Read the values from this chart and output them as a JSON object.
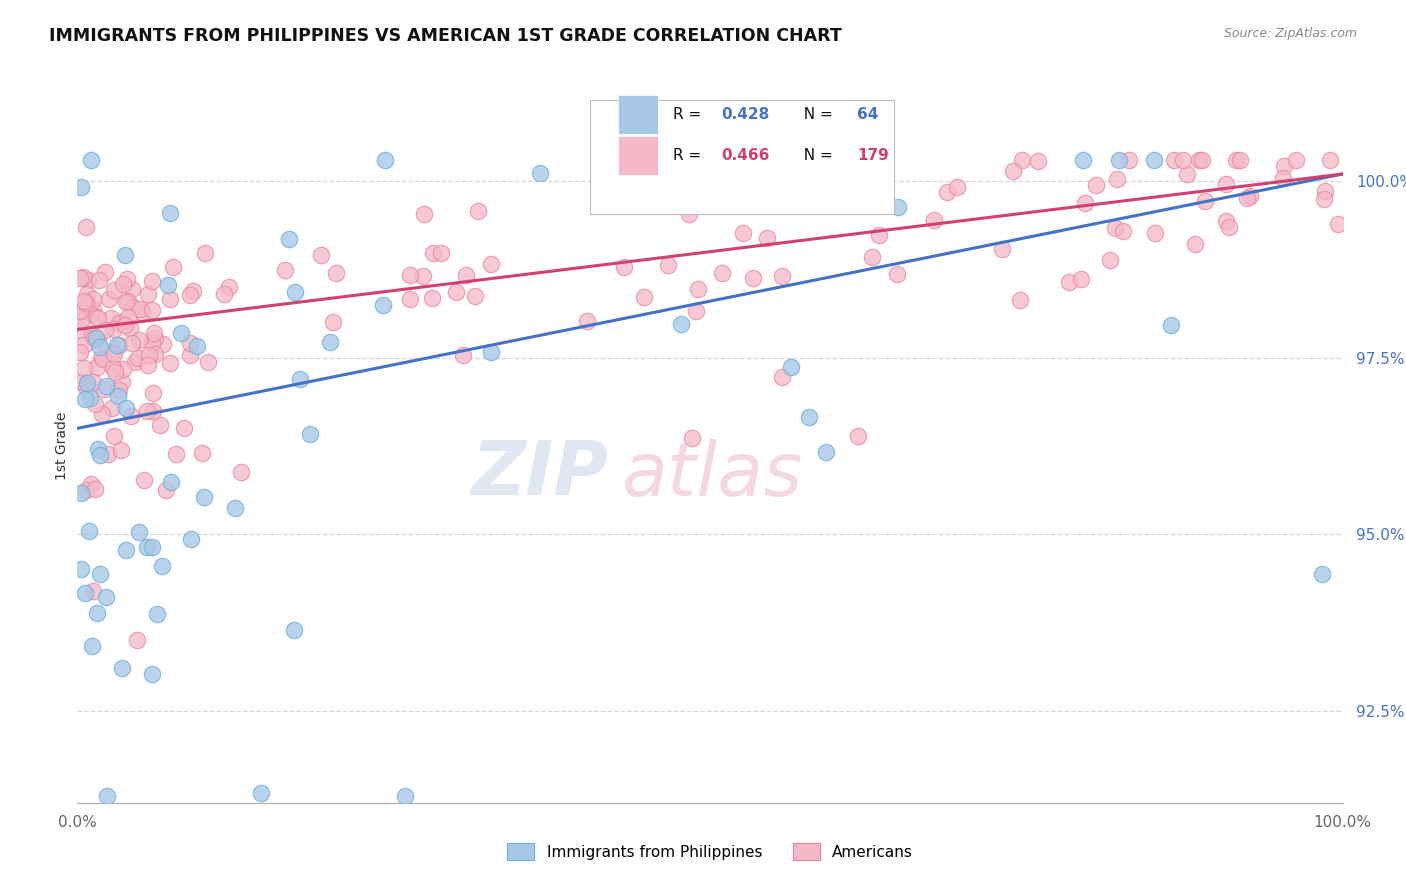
{
  "title": "IMMIGRANTS FROM PHILIPPINES VS AMERICAN 1ST GRADE CORRELATION CHART",
  "source_text": "Source: ZipAtlas.com",
  "ylabel": "1st Grade",
  "xlim": [
    0.0,
    100.0
  ],
  "ylim": [
    91.2,
    101.3
  ],
  "yticks": [
    92.5,
    95.0,
    97.5,
    100.0
  ],
  "ytick_labels": [
    "92.5%",
    "95.0%",
    "97.5%",
    "100.0%"
  ],
  "legend_label1": "Immigrants from Philippines",
  "legend_label2": "Americans",
  "blue_color": "#a8c8e8",
  "blue_edge_color": "#6baed6",
  "pink_color": "#f4b8c8",
  "pink_edge_color": "#e8829a",
  "blue_line_color": "#4472c4",
  "pink_line_color": "#d04070",
  "blue_line_start_y": 96.5,
  "blue_line_end_y": 100.1,
  "pink_line_start_y": 97.9,
  "pink_line_end_y": 100.1,
  "watermark_text": "ZIP",
  "watermark_text2": "atlas",
  "watermark_color": "#c8d8e8",
  "watermark_color2": "#d8b0b8"
}
